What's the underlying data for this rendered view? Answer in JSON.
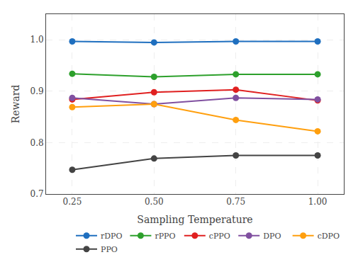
{
  "chart_data": {
    "type": "line",
    "x": [
      0.25,
      0.5,
      0.75,
      1.0
    ],
    "series": [
      {
        "name": "rDPO",
        "color": "#1f6fbf",
        "values": [
          0.997,
          0.995,
          0.997,
          0.997
        ]
      },
      {
        "name": "rPPO",
        "color": "#2da02c",
        "values": [
          0.934,
          0.928,
          0.933,
          0.933
        ]
      },
      {
        "name": "cPPO",
        "color": "#e02020",
        "values": [
          0.884,
          0.898,
          0.903,
          0.882
        ]
      },
      {
        "name": "DPO",
        "color": "#8050a0",
        "values": [
          0.887,
          0.875,
          0.887,
          0.884
        ]
      },
      {
        "name": "cDPO",
        "color": "#ff9f0e",
        "values": [
          0.869,
          0.875,
          0.844,
          0.822
        ]
      },
      {
        "name": "PPO",
        "color": "#444444",
        "values": [
          0.747,
          0.769,
          0.775,
          0.775
        ]
      }
    ],
    "xlabel": "Sampling Temperature",
    "ylabel": "Reward",
    "xlim": [
      0.17,
      1.08
    ],
    "ylim": [
      0.7,
      1.05
    ],
    "xticks": [
      0.25,
      {
        "value": 0.5,
        "label": "0.50"
      },
      0.75,
      {
        "value": 1.0,
        "label": "1.00"
      }
    ],
    "yticks": [
      0.7,
      0.8,
      0.9,
      {
        "value": 1.0,
        "label": "1.0"
      }
    ],
    "marker": "circle",
    "grid": true,
    "legend": "lower right"
  }
}
